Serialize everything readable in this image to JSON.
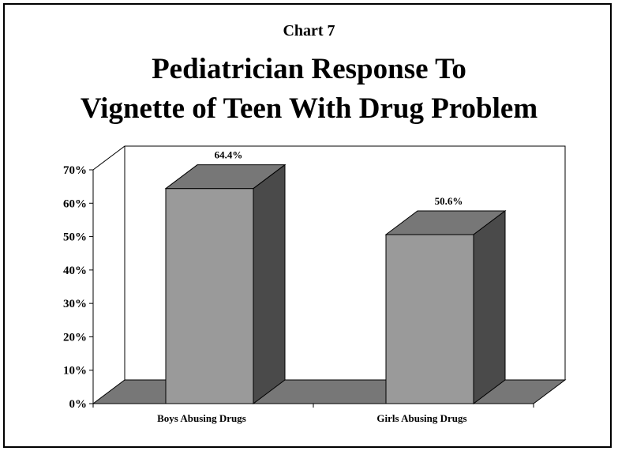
{
  "header": {
    "chart_number": "Chart 7",
    "title_line1": "Pediatrician Response To",
    "title_line2": "Vignette of Teen With Drug Problem"
  },
  "chart_data": {
    "type": "bar",
    "categories": [
      "Boys Abusing Drugs",
      "Girls Abusing Drugs"
    ],
    "values": [
      64.4,
      50.6
    ],
    "data_labels": [
      "64.4%",
      "50.6%"
    ],
    "ylim": [
      0,
      70
    ],
    "yticks": [
      "0%",
      "10%",
      "20%",
      "30%",
      "40%",
      "50%",
      "60%",
      "70%"
    ],
    "title": "Pediatrician Response To Vignette of Teen With Drug Problem",
    "xlabel": "",
    "ylabel": "",
    "style": "3d-bar",
    "colors": {
      "bar_front": "#9a9a9a",
      "bar_top": "#777777",
      "bar_side": "#4a4a4a",
      "floor": "#777777"
    }
  }
}
